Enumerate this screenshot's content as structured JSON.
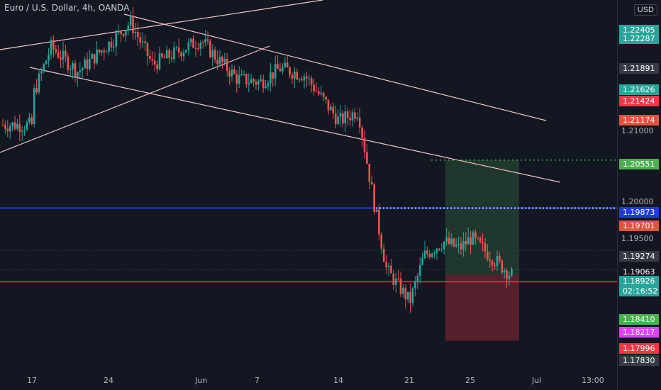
{
  "header": {
    "title": "Euro / U.S. Dollar, 4h, OANDA"
  },
  "axis": {
    "currency": "USD",
    "plain_ticks": [
      "1.21000",
      "1.20000",
      "1.19500"
    ],
    "tags": [
      {
        "label": "1.22405",
        "bg": "#26a69a",
        "fg": "#ffffff"
      },
      {
        "label": "1.22287",
        "bg": "#26a69a",
        "fg": "#ffffff"
      },
      {
        "label": "1.21891",
        "bg": "#363a45",
        "fg": "#ffffff"
      },
      {
        "label": "1.21626",
        "bg": "#26a69a",
        "fg": "#ffffff"
      },
      {
        "label": "1.21424",
        "bg": "#f23645",
        "fg": "#ffffff"
      },
      {
        "label": "1.21174",
        "bg": "#e0533f",
        "fg": "#ffffff"
      },
      {
        "label": "1.20551",
        "bg": "#4caf50",
        "fg": "#ffffff"
      },
      {
        "label": "1.19873",
        "bg": "#1e3adf",
        "fg": "#ffffff"
      },
      {
        "label": "1.19701",
        "bg": "#e0533f",
        "fg": "#ffffff"
      },
      {
        "label": "1.19274",
        "bg": "#363a45",
        "fg": "#ffffff"
      },
      {
        "label": "1.19063",
        "bg": "#131722",
        "fg": "#ffffff"
      },
      {
        "label": "1.18926",
        "bg": "#26a69a",
        "fg": "#ffffff"
      },
      {
        "label": "02:16:52",
        "bg": "#26a69a",
        "fg": "#ffffff"
      },
      {
        "label": "1.18410",
        "bg": "#4caf50",
        "fg": "#ffffff"
      },
      {
        "label": "1.18217",
        "bg": "#e040fb",
        "fg": "#ffffff"
      },
      {
        "label": "1.17996",
        "bg": "#f23645",
        "fg": "#ffffff"
      },
      {
        "label": "1.17830",
        "bg": "#363a45",
        "fg": "#ffffff"
      }
    ]
  },
  "time_axis": [
    "17",
    "24",
    "Jun",
    "7",
    "14",
    "21",
    "25",
    "Jul",
    "13:00"
  ],
  "levels": {
    "horizontal_resistance": 1.19873,
    "horizontal_support": 1.1883,
    "take_profit": 1.20551,
    "entry": 1.1893,
    "stop_loss": 1.17996
  },
  "colors": {
    "background": "#131722",
    "bull": "#26a69a",
    "bear": "#ef5350",
    "trendline": "#f5c6cb",
    "blue_line": "#1e3adf",
    "red_line": "#f23645",
    "target_zone": "rgba(76,175,80,0.22)",
    "stop_zone": "rgba(242,54,69,0.30)"
  },
  "chart_data": {
    "type": "candlestick",
    "symbol": "EUR/USD",
    "interval": "4h",
    "price_range": [
      1.175,
      1.228
    ],
    "price_path": [
      {
        "date": "May 17",
        "price": 1.2145
      },
      {
        "date": "May 19",
        "price": 1.2215
      },
      {
        "date": "May 21",
        "price": 1.218
      },
      {
        "date": "May 24",
        "price": 1.222
      },
      {
        "date": "May 26",
        "price": 1.225
      },
      {
        "date": "May 28",
        "price": 1.219
      },
      {
        "date": "Jun 1",
        "price": 1.2225
      },
      {
        "date": "Jun 3",
        "price": 1.22
      },
      {
        "date": "Jun 5",
        "price": 1.217
      },
      {
        "date": "Jun 7",
        "price": 1.2165
      },
      {
        "date": "Jun 9",
        "price": 1.2185
      },
      {
        "date": "Jun 11",
        "price": 1.2175
      },
      {
        "date": "Jun 14",
        "price": 1.211
      },
      {
        "date": "Jun 16",
        "price": 1.2125
      },
      {
        "date": "Jun 17",
        "price": 1.199
      },
      {
        "date": "Jun 18",
        "price": 1.19
      },
      {
        "date": "Jun 21",
        "price": 1.1855
      },
      {
        "date": "Jun 22",
        "price": 1.192
      },
      {
        "date": "Jun 23",
        "price": 1.194
      },
      {
        "date": "Jun 24",
        "price": 1.193
      },
      {
        "date": "Jun 25",
        "price": 1.1945
      },
      {
        "date": "Jun 28",
        "price": 1.1893
      }
    ]
  }
}
